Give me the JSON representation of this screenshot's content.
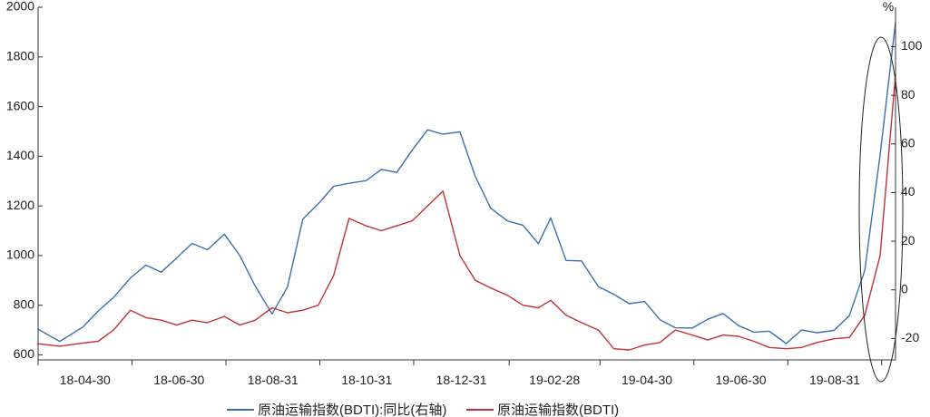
{
  "chart_data": {
    "type": "line",
    "title": "",
    "left_axis": {
      "ylim": [
        580,
        2000
      ],
      "ticks": [
        "600",
        "800",
        "1000",
        "1200",
        "1400",
        "1600",
        "1800",
        "2000"
      ]
    },
    "right_axis": {
      "unit_label": "%",
      "ylim": [
        -28.8,
        116.2
      ],
      "ticks": [
        "-20",
        "0",
        "20",
        "40",
        "60",
        "80",
        "100"
      ]
    },
    "x_tick_labels": [
      "18-04-30",
      "18-06-30",
      "18-08-31",
      "18-10-31",
      "18-12-31",
      "19-02-28",
      "19-04-30",
      "19-06-30",
      "19-08-31"
    ],
    "legend_position": "bottom",
    "grid": false,
    "series": [
      {
        "name": "原油运输指数(BDTI):同比(右轴)",
        "axis": "right",
        "color": "#3a6fb0",
        "x": [
          "2018-04-01",
          "2018-04-15",
          "2018-04-30",
          "2018-05-10",
          "2018-05-20",
          "2018-05-31",
          "2018-06-10",
          "2018-06-20",
          "2018-06-30",
          "2018-07-10",
          "2018-07-20",
          "2018-07-31",
          "2018-08-10",
          "2018-08-20",
          "2018-08-31",
          "2018-09-10",
          "2018-09-20",
          "2018-09-30",
          "2018-10-10",
          "2018-10-20",
          "2018-10-31",
          "2018-11-10",
          "2018-11-20",
          "2018-11-30",
          "2018-12-10",
          "2018-12-20",
          "2018-12-31",
          "2019-01-10",
          "2019-01-20",
          "2019-01-31",
          "2019-02-10",
          "2019-02-20",
          "2019-02-28",
          "2019-03-10",
          "2019-03-20",
          "2019-03-31",
          "2019-04-10",
          "2019-04-20",
          "2019-04-30",
          "2019-05-10",
          "2019-05-20",
          "2019-05-31",
          "2019-06-10",
          "2019-06-20",
          "2019-06-30",
          "2019-07-10",
          "2019-07-20",
          "2019-07-31",
          "2019-08-10",
          "2019-08-20",
          "2019-08-31",
          "2019-09-10",
          "2019-09-20",
          "2019-09-30",
          "2019-10-10"
        ],
        "values": [
          -16.2,
          -21.2,
          -15.3,
          -8.7,
          -3.1,
          4.9,
          10.2,
          7.3,
          13.1,
          19.1,
          16.5,
          22.9,
          14.1,
          1.6,
          -9.9,
          1.1,
          29.1,
          35.4,
          42.6,
          43.8,
          44.9,
          49.5,
          48.3,
          57.4,
          65.8,
          64.0,
          65.0,
          46.7,
          33.6,
          28.3,
          26.6,
          19.0,
          29.6,
          12.1,
          11.9,
          1.3,
          -1.8,
          -5.7,
          -4.8,
          -12.3,
          -15.6,
          -15.7,
          -12.1,
          -9.7,
          -14.7,
          -17.4,
          -17.0,
          -22.1,
          -16.5,
          -17.6,
          -16.7,
          -10.6,
          8.0,
          55.4,
          110.0
        ]
      },
      {
        "name": "原油运输指数(BDTI)",
        "axis": "left",
        "color": "#c0323a",
        "x": [
          "2018-04-01",
          "2018-04-15",
          "2018-04-30",
          "2018-05-10",
          "2018-05-20",
          "2018-05-31",
          "2018-06-10",
          "2018-06-20",
          "2018-06-30",
          "2018-07-10",
          "2018-07-20",
          "2018-07-31",
          "2018-08-10",
          "2018-08-20",
          "2018-08-31",
          "2018-09-10",
          "2018-09-20",
          "2018-09-30",
          "2018-10-10",
          "2018-10-20",
          "2018-10-31",
          "2018-11-10",
          "2018-11-20",
          "2018-11-30",
          "2018-12-10",
          "2018-12-20",
          "2018-12-31",
          "2019-01-10",
          "2019-01-20",
          "2019-01-31",
          "2019-02-10",
          "2019-02-20",
          "2019-02-28",
          "2019-03-10",
          "2019-03-20",
          "2019-03-31",
          "2019-04-10",
          "2019-04-20",
          "2019-04-30",
          "2019-05-10",
          "2019-05-20",
          "2019-05-31",
          "2019-06-10",
          "2019-06-20",
          "2019-06-30",
          "2019-07-10",
          "2019-07-20",
          "2019-07-31",
          "2019-08-10",
          "2019-08-20",
          "2019-08-31",
          "2019-09-10",
          "2019-09-20",
          "2019-09-30",
          "2019-10-10"
        ],
        "values": [
          645,
          635,
          648,
          655,
          700,
          780,
          750,
          740,
          720,
          740,
          730,
          755,
          720,
          740,
          790,
          770,
          780,
          800,
          920,
          1150,
          1120,
          1100,
          1120,
          1140,
          1200,
          1260,
          1000,
          900,
          870,
          840,
          800,
          790,
          820,
          760,
          730,
          700,
          625,
          620,
          640,
          650,
          700,
          680,
          660,
          680,
          675,
          655,
          630,
          625,
          630,
          650,
          665,
          670,
          760,
          1000,
          1730
        ]
      }
    ]
  }
}
